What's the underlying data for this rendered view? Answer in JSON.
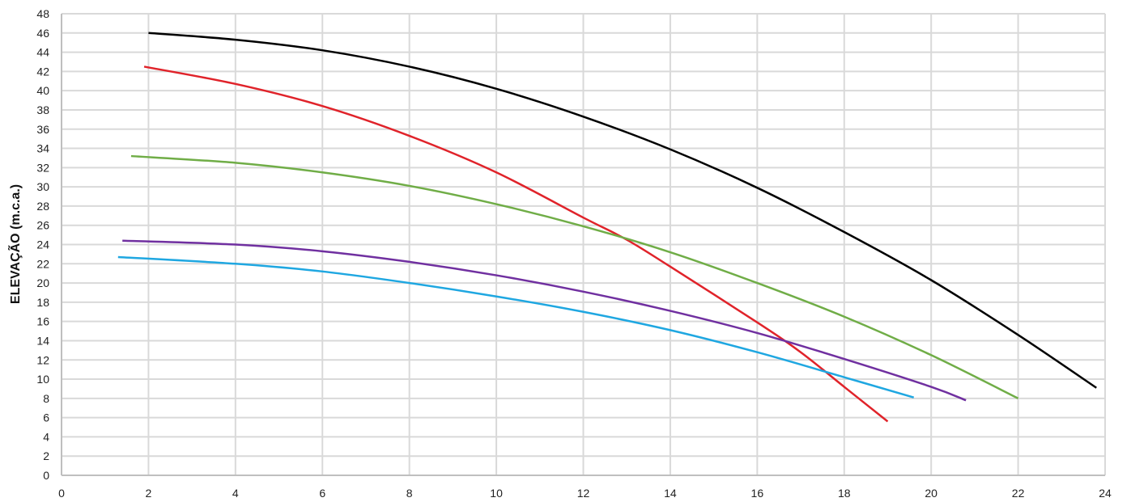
{
  "chart_data": {
    "type": "line",
    "title": "",
    "xlabel": "",
    "ylabel": "ELEVAÇÃO (m.c.a.)",
    "xlim": [
      0,
      24
    ],
    "ylim": [
      0,
      48
    ],
    "x_ticks": [
      "0",
      "2",
      "4",
      "6",
      "8",
      "10",
      "12",
      "14",
      "16",
      "18",
      "20",
      "22",
      "24"
    ],
    "y_ticks": [
      "0",
      "2",
      "4",
      "6",
      "8",
      "10",
      "12",
      "14",
      "16",
      "18",
      "20",
      "22",
      "24",
      "26",
      "28",
      "30",
      "32",
      "34",
      "36",
      "38",
      "40",
      "42",
      "44",
      "46",
      "48"
    ],
    "grid": true,
    "legend": "none",
    "colors": {
      "grid": "#d9d9d9",
      "axis": "#bfbfbf"
    },
    "series": [
      {
        "color": "#000000",
        "x": [
          2,
          4,
          6,
          8,
          10,
          12,
          14,
          16,
          18,
          20,
          22,
          23.8
        ],
        "y": [
          46,
          45.3,
          44.2,
          42.5,
          40.2,
          37.3,
          33.9,
          29.9,
          25.3,
          20.3,
          14.6,
          9.1
        ]
      },
      {
        "color": "#e0232a",
        "x": [
          1.9,
          4,
          6,
          8,
          10,
          12,
          13,
          14,
          16,
          17,
          18,
          19
        ],
        "y": [
          42.5,
          40.7,
          38.4,
          35.3,
          31.5,
          26.8,
          24.5,
          21.7,
          15.9,
          12.8,
          9.2,
          5.6
        ]
      },
      {
        "color": "#70ad47",
        "x": [
          1.6,
          4,
          6,
          8,
          10,
          12,
          14,
          16,
          18,
          20,
          22
        ],
        "y": [
          33.2,
          32.5,
          31.5,
          30.1,
          28.2,
          25.9,
          23.2,
          20.0,
          16.5,
          12.5,
          8.0
        ]
      },
      {
        "color": "#7030a0",
        "x": [
          1.4,
          4,
          6,
          8,
          10,
          12,
          14,
          16,
          18,
          20,
          20.8
        ],
        "y": [
          24.4,
          24.0,
          23.3,
          22.2,
          20.8,
          19.1,
          17.1,
          14.8,
          12.1,
          9.2,
          7.8
        ]
      },
      {
        "color": "#1fa7e1",
        "x": [
          1.3,
          4,
          6,
          8,
          10,
          12,
          14,
          16,
          18,
          19.6
        ],
        "y": [
          22.7,
          22.0,
          21.2,
          20.0,
          18.6,
          17.0,
          15.1,
          12.8,
          10.2,
          8.1
        ]
      }
    ]
  }
}
